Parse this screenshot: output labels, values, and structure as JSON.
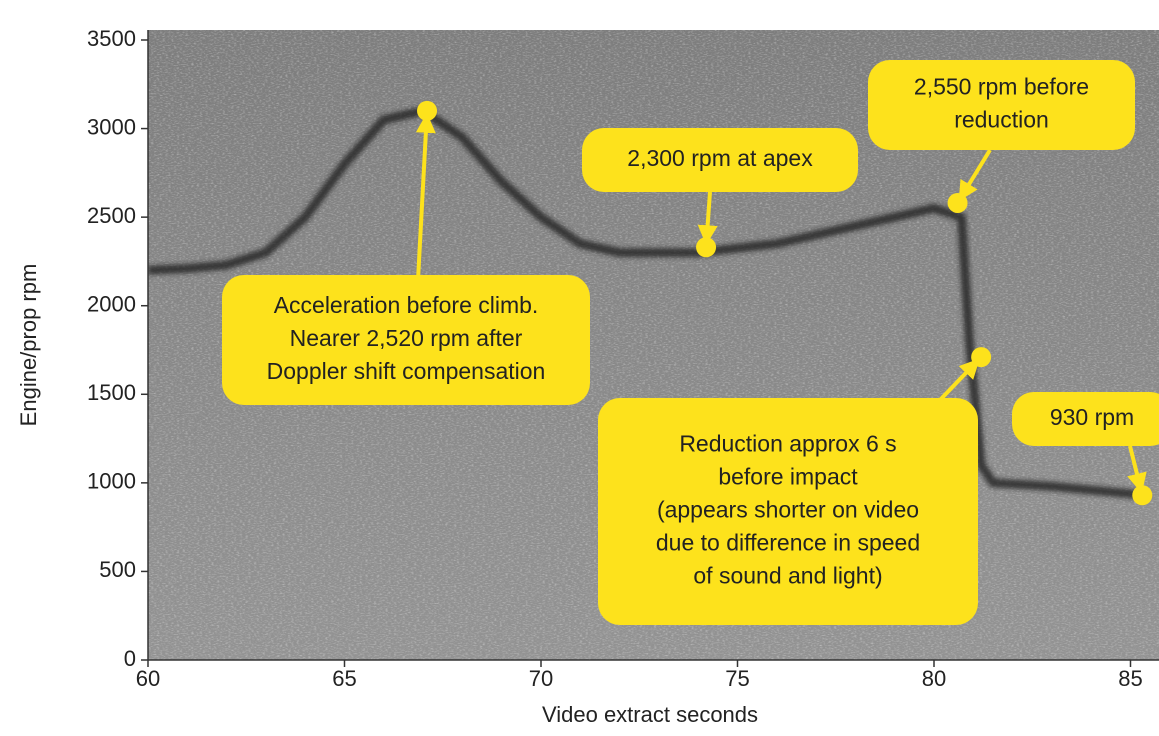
{
  "chart_data": {
    "type": "line",
    "x_label": "Video extract seconds",
    "y_label": "Engine/prop rpm",
    "xlim": [
      60,
      85.4
    ],
    "ylim": [
      0,
      3500
    ],
    "xticks": [
      60,
      65,
      70,
      75,
      80,
      85
    ],
    "yticks": [
      0,
      500,
      1000,
      1500,
      2000,
      2500,
      3000,
      3500
    ],
    "x": [
      60,
      61,
      62,
      63,
      64,
      65,
      66,
      67,
      68,
      69,
      70,
      71,
      72,
      74,
      76,
      78,
      80,
      80.7,
      80.9,
      81.2,
      81.5,
      83,
      85.4
    ],
    "values": [
      2200,
      2210,
      2230,
      2300,
      2500,
      2800,
      3050,
      3100,
      2950,
      2700,
      2500,
      2350,
      2300,
      2300,
      2350,
      2450,
      2550,
      2500,
      1800,
      1100,
      1000,
      980,
      930
    ],
    "color": "#1e1e1e",
    "annotation_color": "#fde21c",
    "annotations": [
      {
        "lines": [
          "Acceleration before climb.",
          "Nearer 2,520 rpm after",
          "Doppler shift compensation"
        ],
        "x": 67.1,
        "y": 3100
      },
      {
        "lines": [
          "2,300 rpm at apex"
        ],
        "x": 74.2,
        "y": 2330
      },
      {
        "lines": [
          "2,550 rpm before",
          "reduction"
        ],
        "x": 80.6,
        "y": 2580
      },
      {
        "lines": [
          "Reduction approx 6 s",
          "before impact",
          "(appears shorter on video",
          "due to difference in speed",
          "of sound and light)"
        ],
        "x": 81.2,
        "y": 1710
      },
      {
        "lines": [
          "930 rpm"
        ],
        "x": 85.3,
        "y": 930
      }
    ]
  }
}
